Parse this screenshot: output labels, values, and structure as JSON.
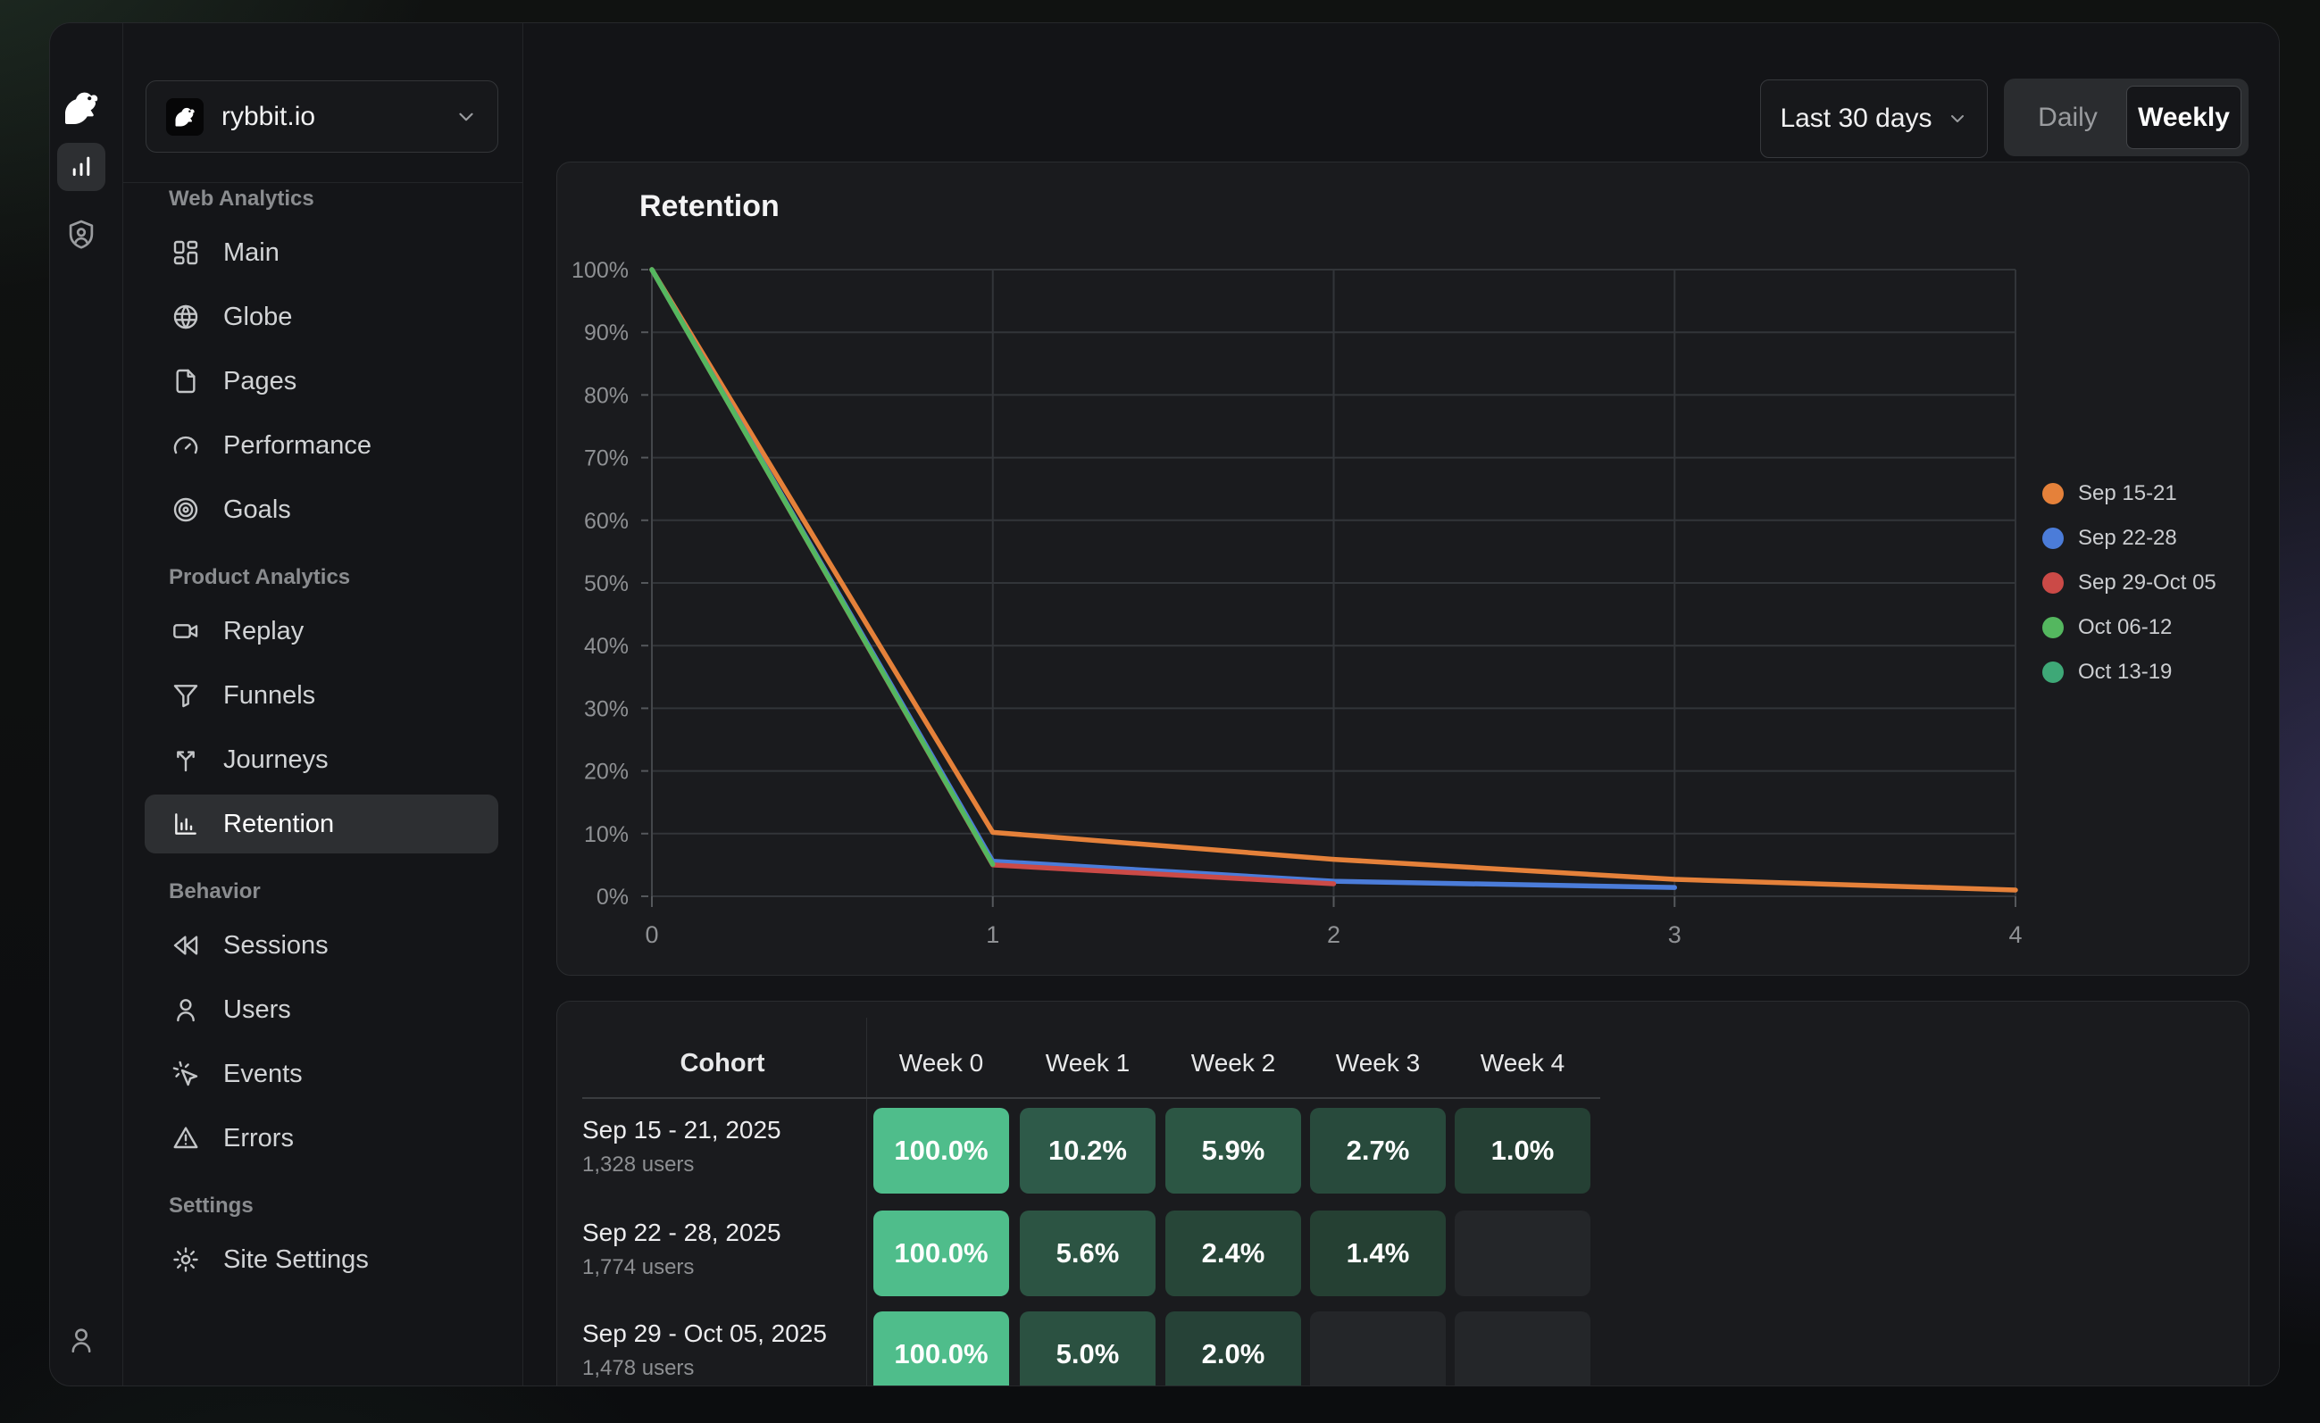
{
  "workspace": {
    "name": "rybbit.io"
  },
  "topbar": {
    "date_range": "Last 30 days",
    "granularity": {
      "options": [
        "Daily",
        "Weekly"
      ],
      "selected": "Weekly"
    }
  },
  "sidebar": {
    "sections": [
      {
        "label": "Web Analytics",
        "items": [
          {
            "icon": "dashboard",
            "label": "Main"
          },
          {
            "icon": "globe",
            "label": "Globe"
          },
          {
            "icon": "file",
            "label": "Pages"
          },
          {
            "icon": "gauge",
            "label": "Performance"
          },
          {
            "icon": "target",
            "label": "Goals"
          }
        ]
      },
      {
        "label": "Product Analytics",
        "items": [
          {
            "icon": "video",
            "label": "Replay"
          },
          {
            "icon": "funnel",
            "label": "Funnels"
          },
          {
            "icon": "split",
            "label": "Journeys"
          },
          {
            "icon": "bar-chart",
            "label": "Retention",
            "active": true
          }
        ]
      },
      {
        "label": "Behavior",
        "items": [
          {
            "icon": "rewind",
            "label": "Sessions"
          },
          {
            "icon": "user",
            "label": "Users"
          },
          {
            "icon": "cursor-click",
            "label": "Events"
          },
          {
            "icon": "alert-triangle",
            "label": "Errors"
          }
        ]
      },
      {
        "label": "Settings",
        "items": [
          {
            "icon": "gear",
            "label": "Site Settings"
          }
        ]
      }
    ]
  },
  "chart": {
    "title": "Retention"
  },
  "chart_data": {
    "type": "line",
    "title": "Retention",
    "x": [
      0,
      1,
      2,
      3,
      4
    ],
    "x_tick_labels": [
      "0",
      "1",
      "2",
      "3",
      "4"
    ],
    "y_tick_labels": [
      "0%",
      "10%",
      "20%",
      "30%",
      "40%",
      "50%",
      "60%",
      "70%",
      "80%",
      "90%",
      "100%"
    ],
    "ylim": [
      0,
      100
    ],
    "grid": true,
    "legend_position": "right",
    "series": [
      {
        "name": "Sep 15-21",
        "color": "#E5813A",
        "values": [
          100,
          10.2,
          5.9,
          2.7,
          1.0
        ]
      },
      {
        "name": "Sep 22-28",
        "color": "#4B7CD9",
        "values": [
          100,
          5.6,
          2.4,
          1.4
        ]
      },
      {
        "name": "Sep 29-Oct 05",
        "color": "#CB4A47",
        "values": [
          100,
          5.0,
          2.0
        ]
      },
      {
        "name": "Oct 06-12",
        "color": "#54B75F",
        "values": [
          100,
          5.1
        ]
      },
      {
        "name": "Oct 13-19",
        "color": "#3EA877",
        "values": [
          100
        ]
      }
    ]
  },
  "cohort_table": {
    "headers": [
      "Cohort",
      "Week 0",
      "Week 1",
      "Week 2",
      "Week 3",
      "Week 4"
    ],
    "empty_cell_color": "#242629",
    "rows": [
      {
        "cohort": "Sep 15 - 21, 2025",
        "users": "1,328 users",
        "cells": [
          {
            "value": "100.0%",
            "color": "#4FBD8B"
          },
          {
            "value": "10.2%",
            "color": "#2E5A49"
          },
          {
            "value": "5.9%",
            "color": "#2C5644"
          },
          {
            "value": "2.7%",
            "color": "#284A3C"
          },
          {
            "value": "1.0%",
            "color": "#254034"
          }
        ]
      },
      {
        "cohort": "Sep 22 - 28, 2025",
        "users": "1,774 users",
        "cells": [
          {
            "value": "100.0%",
            "color": "#4FBD8B"
          },
          {
            "value": "5.6%",
            "color": "#2C5443"
          },
          {
            "value": "2.4%",
            "color": "#274638"
          },
          {
            "value": "1.4%",
            "color": "#254033"
          },
          {
            "value": "",
            "color": ""
          }
        ]
      },
      {
        "cohort": "Sep 29 - Oct 05, 2025",
        "users": "1,478 users",
        "cells": [
          {
            "value": "100.0%",
            "color": "#4FBD8B"
          },
          {
            "value": "5.0%",
            "color": "#2B5141"
          },
          {
            "value": "2.0%",
            "color": "#264237"
          },
          {
            "value": "",
            "color": ""
          },
          {
            "value": "",
            "color": ""
          }
        ]
      }
    ]
  }
}
